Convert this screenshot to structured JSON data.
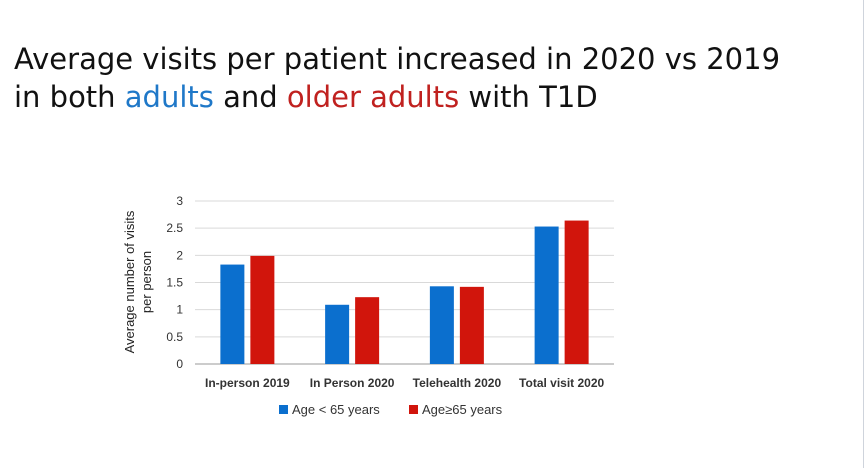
{
  "slide": {
    "title_line1": "Average visits per patient increased in 2020 vs 2019",
    "title_line2_a": "in both ",
    "title_line2_b": "adults",
    "title_line2_c": " and ",
    "title_line2_d": "older adults",
    "title_line2_e": " with T1D",
    "highlight_colors": {
      "adults": "#1f78c8",
      "older_adults": "#c0211f"
    }
  },
  "chart_data": {
    "type": "bar",
    "categories": [
      "In-person 2019",
      "In Person 2020",
      "Telehealth 2020",
      "Total visit 2020"
    ],
    "series": [
      {
        "name": "Age < 65 years",
        "color": "#0b6fce",
        "values": [
          1.83,
          1.09,
          1.43,
          2.53
        ]
      },
      {
        "name": "Age≥65 years",
        "color": "#d1150c",
        "values": [
          1.99,
          1.23,
          1.42,
          2.64
        ]
      }
    ],
    "ylabel_line1": "Average number of visits",
    "ylabel_line2": "per person",
    "ylim": [
      0,
      3
    ],
    "yticks": [
      0,
      0.5,
      1,
      1.5,
      2,
      2.5,
      3
    ],
    "ytick_labels": [
      "0",
      "0.5",
      "1",
      "1.5",
      "2",
      "2.5",
      "3"
    ],
    "grid": true,
    "legend_position": "bottom"
  }
}
